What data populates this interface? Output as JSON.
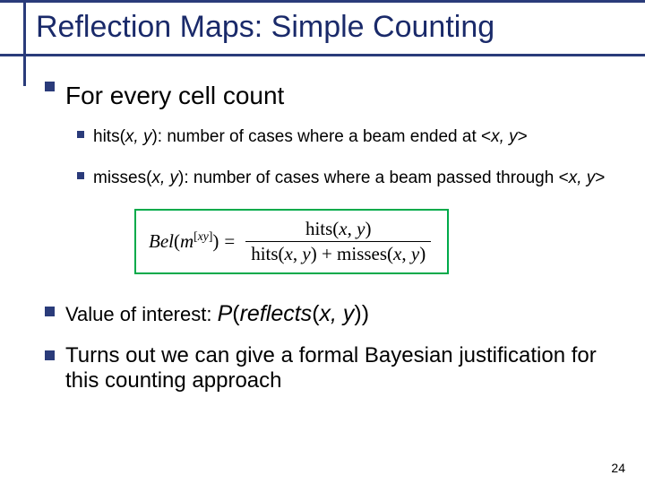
{
  "title": "Reflection Maps: Simple Counting",
  "bullets": {
    "main": "For every cell count",
    "hits_pre": "hits(",
    "hits_args": "x, y",
    "hits_post": "): number of cases where a beam ended at <",
    "hits_tuple": "x, y",
    "hits_close": ">",
    "misses_pre": "misses(",
    "misses_args": "x, y",
    "misses_post": "): number of cases where a beam passed through <",
    "misses_tuple": "x, y",
    "misses_close": ">",
    "voi_label": "Value of interest: ",
    "voi_fn": "P",
    "voi_open": "(",
    "voi_inner": "reflects",
    "voi_args_open": "(",
    "voi_args": "x, y",
    "voi_args_close": ")",
    "voi_close": ")",
    "bayes": "Turns out we can give a formal Bayesian justification for this counting approach"
  },
  "formula": {
    "border_color": "#00aa4a",
    "lhs_bel": "Bel",
    "lhs_paren_open": "(",
    "lhs_m": "m",
    "lhs_sup_open": "[",
    "lhs_sup_xy": "xy",
    "lhs_sup_close": "]",
    "lhs_paren_close": ")",
    "eq": "=",
    "num": "hits(x, y)",
    "den": "hits(x, y) + misses(x, y)"
  },
  "page_number": "24",
  "colors": {
    "accent": "#2a3b7a",
    "text": "#000000",
    "bg": "#ffffff"
  }
}
